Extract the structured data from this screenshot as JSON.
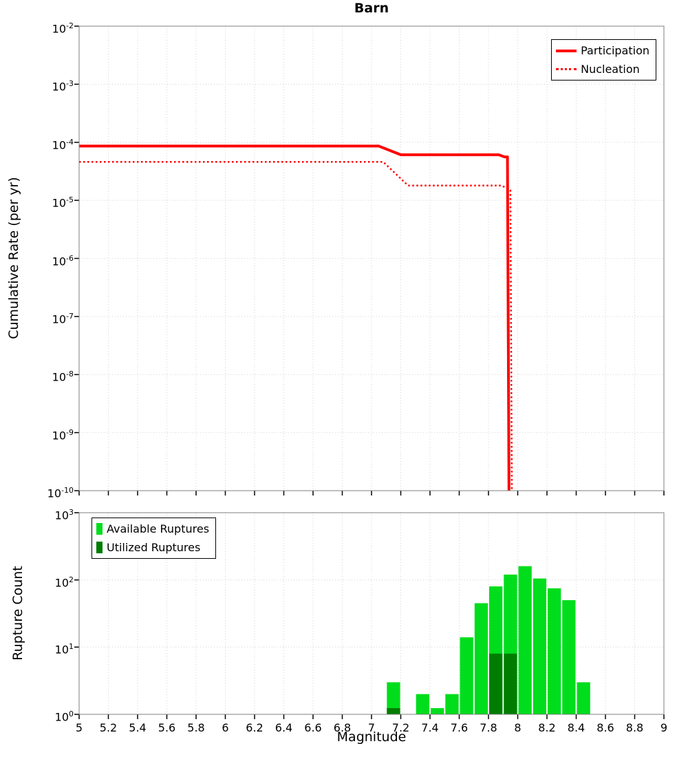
{
  "style": {
    "background": "#ffffff",
    "grid_color": "#d4d4d4",
    "plot_border_color": "#7f7f7f",
    "line_red": "#ff0000",
    "available_green": "#00dd1c",
    "utilized_green": "#007d00"
  },
  "chart_data": [
    {
      "type": "line",
      "title": "Barn",
      "ylabel": "Cumulative Rate (per yr)",
      "x_range": [
        5,
        9
      ],
      "y_log_range": [
        -10,
        -2
      ],
      "y_tick_exponents": [
        -2,
        -3,
        -4,
        -5,
        -6,
        -7,
        -8,
        -9,
        -10
      ],
      "x_ticks": [
        5,
        5.2,
        5.4,
        5.6,
        5.8,
        6,
        6.2,
        6.4,
        6.6,
        6.8,
        7,
        7.2,
        7.4,
        7.6,
        7.8,
        8,
        8.2,
        8.4,
        8.6,
        8.8,
        9
      ],
      "x_tick_labels": false,
      "grid": true,
      "legend_position": "top-right",
      "series": [
        {
          "name": "Participation",
          "style": "solid",
          "color": "#ff0000",
          "line_width": 4,
          "points": [
            [
              5.0,
              8.6e-05
            ],
            [
              7.05,
              8.6e-05
            ],
            [
              7.2,
              6.1e-05
            ],
            [
              7.87,
              6.1e-05
            ],
            [
              7.91,
              5.6e-05
            ],
            [
              7.93,
              5.6e-05
            ],
            [
              7.94,
              1e-10
            ]
          ]
        },
        {
          "name": "Nucleation",
          "style": "dotted",
          "color": "#ff0000",
          "line_width": 2.5,
          "points": [
            [
              5.0,
              4.6e-05
            ],
            [
              7.08,
              4.6e-05
            ],
            [
              7.25,
              1.8e-05
            ],
            [
              7.89,
              1.8e-05
            ],
            [
              7.95,
              1.5e-05
            ],
            [
              7.96,
              1e-10
            ]
          ]
        }
      ]
    },
    {
      "type": "bar",
      "xlabel": "Magnitude",
      "ylabel": "Rupture Count",
      "x_range": [
        5,
        9
      ],
      "y_log_range": [
        0,
        3
      ],
      "y_tick_exponents": [
        3,
        2,
        1,
        0
      ],
      "x_ticks": [
        5,
        5.2,
        5.4,
        5.6,
        5.8,
        6,
        6.2,
        6.4,
        6.6,
        6.8,
        7,
        7.2,
        7.4,
        7.6,
        7.8,
        8,
        8.2,
        8.4,
        8.6,
        8.8,
        9
      ],
      "x_tick_labels": true,
      "grid": true,
      "bar_width": 0.1,
      "legend_position": "top-left",
      "series": [
        {
          "name": "Available Ruptures",
          "color": "#00dd1c",
          "bars": [
            [
              7.15,
              3
            ],
            [
              7.35,
              2
            ],
            [
              7.45,
              1
            ],
            [
              7.55,
              2
            ],
            [
              7.65,
              14
            ],
            [
              7.75,
              45
            ],
            [
              7.85,
              80
            ],
            [
              7.95,
              120
            ],
            [
              8.05,
              160
            ],
            [
              8.15,
              105
            ],
            [
              8.25,
              75
            ],
            [
              8.35,
              50
            ],
            [
              8.45,
              3
            ]
          ]
        },
        {
          "name": "Utilized Ruptures",
          "color": "#007d00",
          "bars": [
            [
              7.15,
              1
            ],
            [
              7.85,
              8
            ],
            [
              7.95,
              8
            ]
          ]
        }
      ]
    }
  ]
}
